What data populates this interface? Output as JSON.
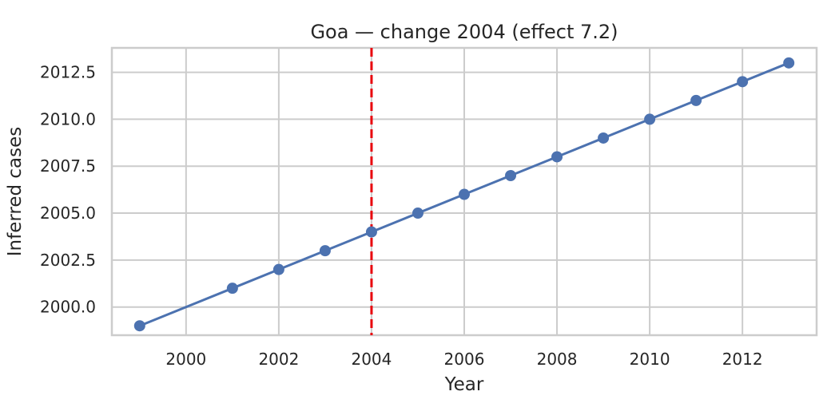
{
  "chart_data": {
    "type": "line",
    "title": "Goa — change 2004 (effect 7.2)",
    "xlabel": "Year",
    "ylabel": "Inferred cases",
    "xlim": [
      1998.4,
      2013.6
    ],
    "ylim": [
      1998.5,
      2013.8
    ],
    "x_ticks": [
      2000,
      2002,
      2004,
      2006,
      2008,
      2010,
      2012
    ],
    "y_ticks": [
      2000.0,
      2002.5,
      2005.0,
      2007.5,
      2010.0,
      2012.5
    ],
    "y_tick_labels": [
      "2000.0",
      "2002.5",
      "2005.0",
      "2007.5",
      "2010.0",
      "2012.5"
    ],
    "grid": true,
    "series": [
      {
        "x": [
          1999,
          2001,
          2002,
          2003,
          2004,
          2005,
          2006,
          2007,
          2008,
          2009,
          2010,
          2011,
          2012,
          2013
        ],
        "values": [
          1999,
          2001,
          2002,
          2003,
          2004,
          2005,
          2006,
          2007,
          2008,
          2009,
          2010,
          2011,
          2012,
          2013
        ],
        "color": "#4c72b0"
      }
    ],
    "change_point": {
      "x": 2004,
      "color": "#e8000b",
      "style": "dashed"
    }
  }
}
